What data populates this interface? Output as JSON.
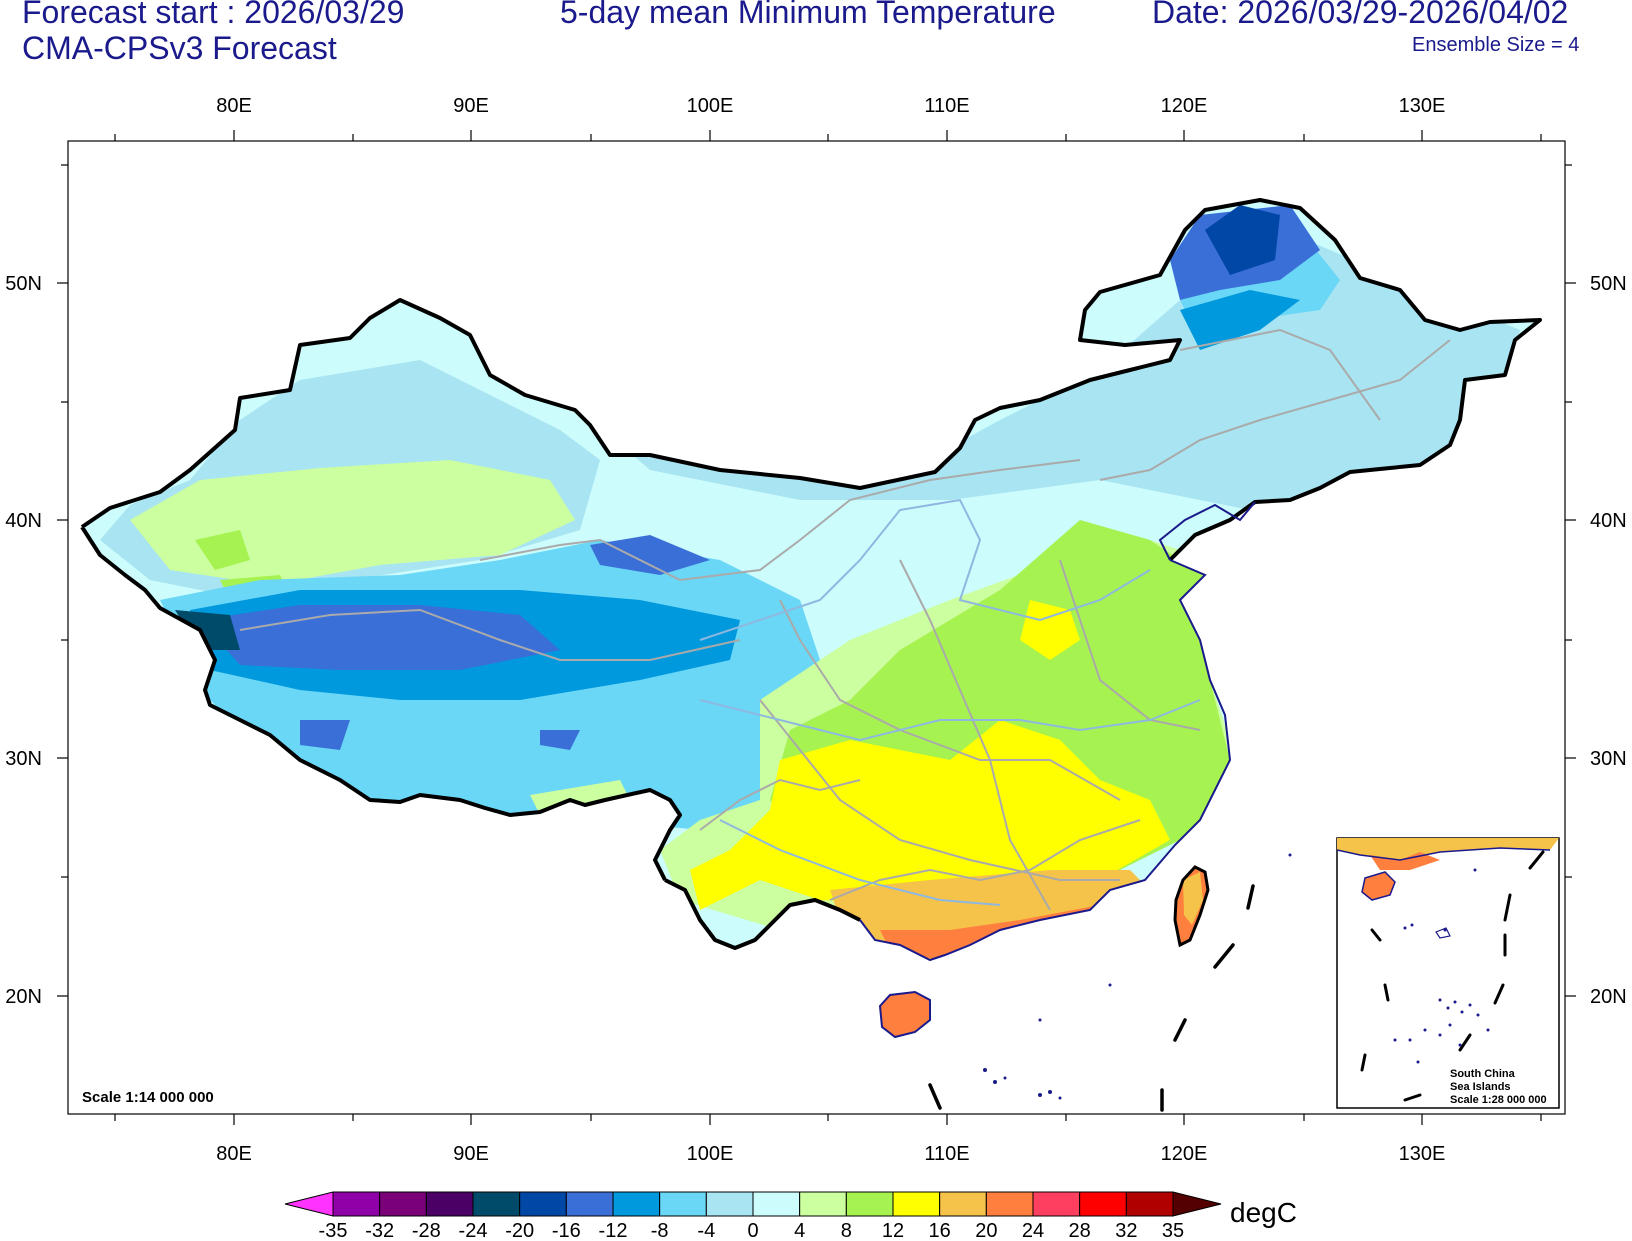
{
  "header": {
    "forecast_start": "Forecast start : 2026/03/29",
    "model": "CMA-CPSv3 Forecast",
    "title": "5-day mean Minimum Temperature",
    "date_range": "Date: 2026/03/29-2026/04/02",
    "ensemble": "Ensemble Size = 4"
  },
  "axes": {
    "lon_labels": [
      "80E",
      "90E",
      "100E",
      "110E",
      "120E",
      "130E"
    ],
    "lat_labels": [
      "50N",
      "40N",
      "30N",
      "20N"
    ]
  },
  "map": {
    "scale_main": "Scale 1:14 000 000",
    "inset_line1": "South China",
    "inset_line2": "Sea Islands",
    "inset_scale": "Scale 1:28 000 000"
  },
  "colorbar": {
    "unit": "degC",
    "levels": [
      "-35",
      "-32",
      "-28",
      "-24",
      "-20",
      "-16",
      "-12",
      "-8",
      "-4",
      "0",
      "4",
      "8",
      "12",
      "16",
      "20",
      "24",
      "28",
      "32",
      "35"
    ],
    "colors": [
      "#8f00a8",
      "#7a007a",
      "#4b0066",
      "#004a6a",
      "#0047a6",
      "#3a6fd8",
      "#0099dd",
      "#6ad7f7",
      "#a8e4f2",
      "#ccfcfc",
      "#ccff9f",
      "#a6f250",
      "#ffff00",
      "#f5c24a",
      "#ff7f3f",
      "#ff3f5f",
      "#ff0000",
      "#b00000"
    ],
    "low_end_color": "#ff33ff",
    "high_end_color": "#550000"
  },
  "colors": {
    "title_text": "#1a1a8c",
    "border": "#000000",
    "province_lines": "#aaaaaa",
    "rivers": "#8fb8e0",
    "coastline": "#1a1a8c"
  }
}
